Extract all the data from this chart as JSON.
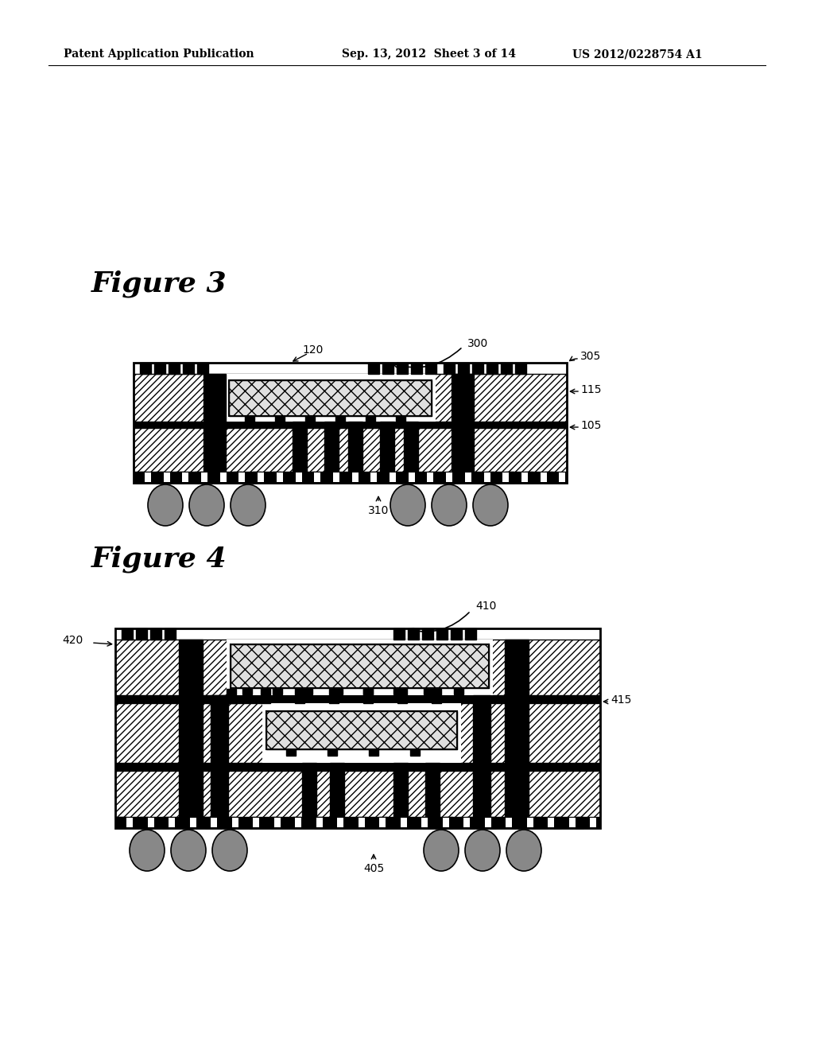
{
  "bg_color": "#ffffff",
  "header_left": "Patent Application Publication",
  "header_mid": "Sep. 13, 2012  Sheet 3 of 14",
  "header_right": "US 2012/0228754 A1",
  "fig3_title": "Figure 3",
  "fig4_title": "Figure 4",
  "hatch_color": "#c8c8c8",
  "ball_color": "#888888",
  "chip_bg": "#e8e8e8"
}
